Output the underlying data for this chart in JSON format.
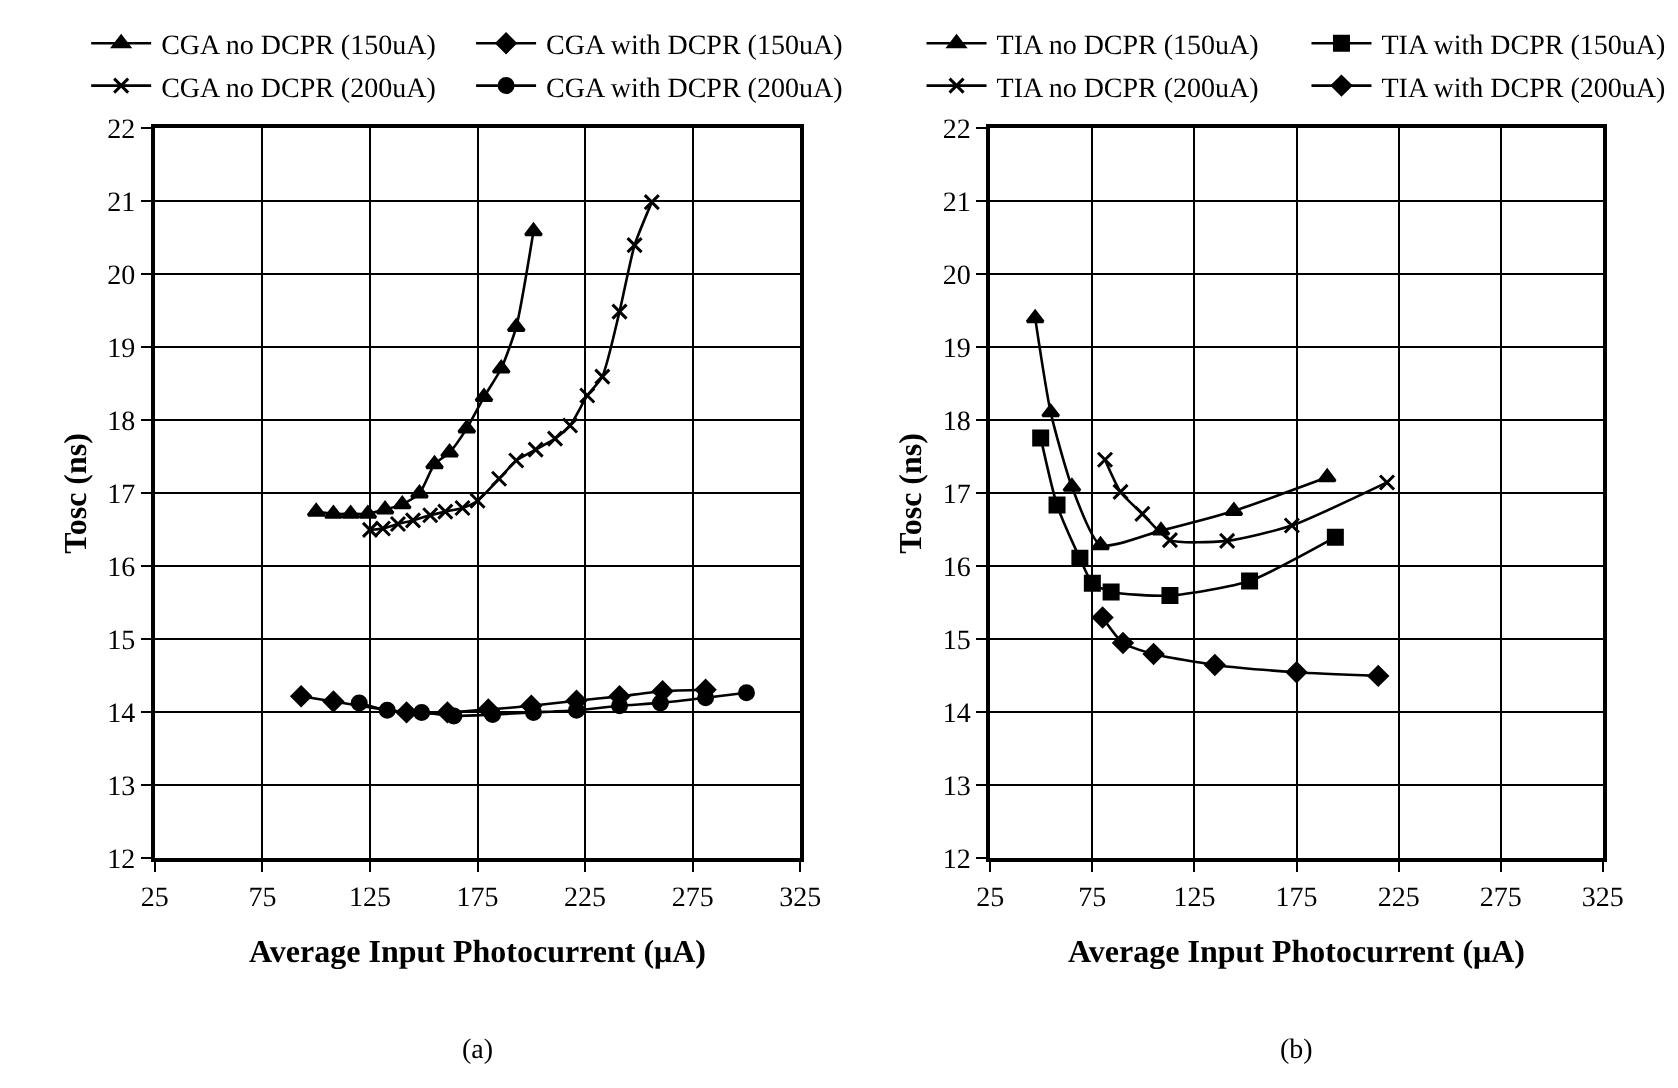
{
  "chart_data": [
    {
      "type": "line",
      "xlabel": "Average Input Photocurrent (μA)",
      "ylabel": "Tosc (ns)",
      "xlim": [
        25,
        325
      ],
      "xticks": [
        25,
        75,
        125,
        175,
        225,
        275,
        325
      ],
      "ylim": [
        12,
        22
      ],
      "yticks": [
        12,
        13,
        14,
        15,
        16,
        17,
        18,
        19,
        20,
        21,
        22
      ],
      "grid": true,
      "legend": "top",
      "annotations": [
        "(a)"
      ],
      "series": [
        {
          "name": "CGA no DCPR (150uA)",
          "color": "#000000",
          "marker": "triangle",
          "x": [
            100,
            108,
            116,
            124,
            132,
            140,
            148,
            155,
            162,
            170,
            178,
            186,
            193,
            201
          ],
          "values": [
            16.75,
            16.72,
            16.72,
            16.72,
            16.78,
            16.85,
            17.0,
            17.4,
            17.56,
            17.89,
            18.32,
            18.71,
            19.28,
            20.59
          ]
        },
        {
          "name": "CGA with DCPR (150uA)",
          "color": "#000000",
          "marker": "diamond",
          "x": [
            93,
            108,
            120,
            133,
            142,
            149,
            161,
            180,
            200,
            221,
            241,
            261,
            281
          ],
          "values": [
            14.22,
            14.15,
            null,
            null,
            14.0,
            null,
            14.0,
            14.04,
            14.09,
            14.16,
            14.22,
            14.29,
            14.31
          ]
        },
        {
          "name": "CGA no DCPR (200uA)",
          "color": "#000000",
          "marker": "cross",
          "x": [
            125,
            131,
            138,
            145,
            153,
            160,
            168,
            175,
            185,
            193,
            202,
            211,
            218,
            226,
            233,
            241,
            248,
            256
          ],
          "values": [
            16.5,
            16.52,
            16.58,
            16.63,
            16.7,
            16.75,
            16.8,
            16.9,
            17.2,
            17.45,
            17.6,
            17.75,
            17.93,
            18.34,
            18.6,
            19.49,
            20.4,
            20.99
          ]
        },
        {
          "name": "CGA with DCPR (200uA)",
          "color": "#000000",
          "marker": "circle",
          "x": [
            120,
            133,
            149,
            164,
            182,
            201,
            221,
            241,
            260,
            281,
            300
          ],
          "values": [
            14.13,
            14.03,
            14.0,
            13.95,
            13.97,
            14.0,
            14.03,
            14.09,
            14.13,
            14.2,
            14.27
          ]
        }
      ]
    },
    {
      "type": "line",
      "xlabel": "Average Input Photocurrent (μA)",
      "ylabel": "Tosc (ns)",
      "xlim": [
        25,
        325
      ],
      "xticks": [
        25,
        75,
        125,
        175,
        225,
        275,
        325
      ],
      "ylim": [
        12,
        22
      ],
      "yticks": [
        12,
        13,
        14,
        15,
        16,
        17,
        18,
        19,
        20,
        21,
        22
      ],
      "grid": true,
      "legend": "top",
      "annotations": [
        "(b)"
      ],
      "series": [
        {
          "name": "TIA no DCPR (150uA)",
          "color": "#000000",
          "marker": "triangle",
          "x": [
            47,
            54.6,
            65,
            79,
            108.6,
            144.3,
            190
          ],
          "values": [
            19.4,
            18.11,
            17.09,
            16.29,
            16.49,
            16.76,
            17.22
          ]
        },
        {
          "name": "TIA with DCPR (150uA)",
          "color": "#000000",
          "marker": "square",
          "x": [
            49.7,
            57.7,
            68.9,
            75,
            84.2,
            113,
            152,
            194
          ],
          "values": [
            17.76,
            16.84,
            16.11,
            15.77,
            15.65,
            15.6,
            15.8,
            16.4
          ]
        },
        {
          "name": "TIA no DCPR (200uA)",
          "color": "#000000",
          "marker": "cross",
          "x": [
            81.2,
            88.8,
            99.5,
            113,
            141,
            172.7,
            219.3
          ],
          "values": [
            17.46,
            17.02,
            16.72,
            16.36,
            16.35,
            16.56,
            17.15
          ]
        },
        {
          "name": "TIA with DCPR (200uA)",
          "color": "#000000",
          "marker": "diamond",
          "x": [
            80,
            90,
            105,
            135,
            175,
            215
          ],
          "values": [
            15.3,
            14.95,
            14.8,
            14.65,
            14.55,
            14.5
          ]
        }
      ]
    }
  ]
}
